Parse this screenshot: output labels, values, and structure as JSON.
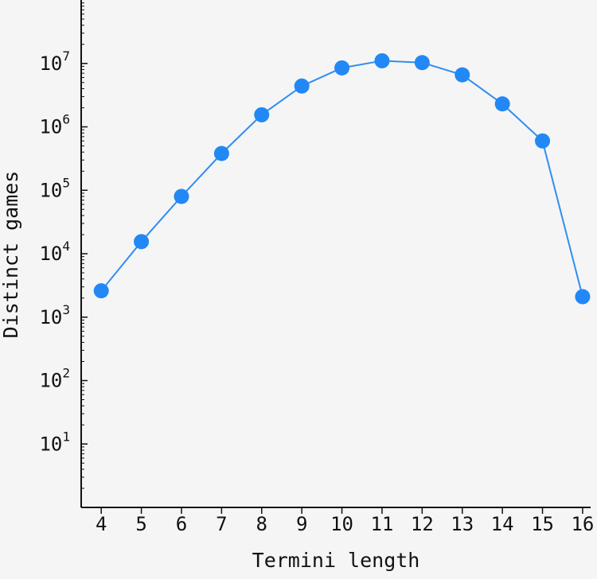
{
  "chart_data": {
    "type": "line",
    "title": "",
    "xlabel": "Termini length",
    "ylabel": "Distinct games",
    "yscale": "log",
    "x": [
      4,
      5,
      6,
      7,
      8,
      9,
      10,
      11,
      12,
      13,
      14,
      15,
      16
    ],
    "series": [
      {
        "values": [
          2600,
          15500,
          80000,
          380000,
          1550000,
          4400000,
          8500000,
          11000000,
          10300000,
          6600000,
          2300000,
          600000,
          2100
        ]
      }
    ],
    "xticks": [
      "4",
      "5",
      "6",
      "7",
      "8",
      "9",
      "10",
      "11",
      "12",
      "13",
      "14",
      "15",
      "16"
    ],
    "yticks": [
      {
        "base": "10",
        "exp": "1",
        "value": 10
      },
      {
        "base": "10",
        "exp": "2",
        "value": 100
      },
      {
        "base": "10",
        "exp": "3",
        "value": 1000
      },
      {
        "base": "10",
        "exp": "4",
        "value": 10000
      },
      {
        "base": "10",
        "exp": "5",
        "value": 100000
      },
      {
        "base": "10",
        "exp": "6",
        "value": 1000000
      },
      {
        "base": "10",
        "exp": "7",
        "value": 10000000
      }
    ],
    "xlim": [
      3.5,
      16.2
    ],
    "ylim": [
      1,
      100000000
    ],
    "grid": false,
    "legend": "none",
    "colors": {
      "line": "#2f8ef0",
      "marker": "#2288f5",
      "axis": "#111111",
      "background": "#f5f5f5"
    }
  }
}
